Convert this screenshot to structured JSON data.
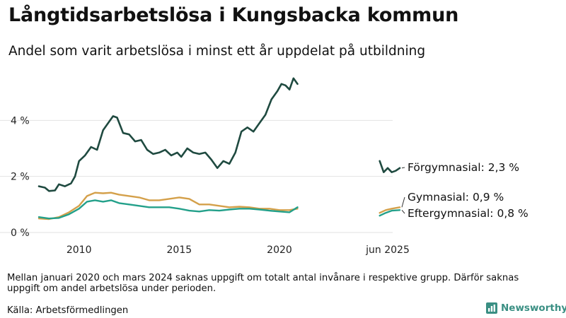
{
  "title": "Långtidsarbetslösa i Kungsbacka kommun",
  "subtitle": "Andel som varit arbetslösa i minst ett år uppdelat på utbildning",
  "note": "Mellan januari 2020 och mars 2024 saknas uppgift om totalt antal invånare i respektive grupp. Därför saknas uppgift om andel arbetslösa under perioden.",
  "source": "Källa: Arbetsförmedlingen",
  "brand": {
    "name": "Newsworthy",
    "icon": "newsworthy-logo-icon",
    "color": "#3a8f83"
  },
  "chart_data": {
    "type": "line",
    "x_unit": "year (decimal)",
    "xlim": [
      2008.0,
      2026.0
    ],
    "ylim": [
      0,
      6
    ],
    "grid": true,
    "y_ticks": [
      0,
      2,
      4
    ],
    "y_tick_labels": [
      "0 %",
      "2 %",
      "4 %"
    ],
    "x_ticks": [
      2010,
      2015,
      2020,
      2025.4
    ],
    "x_tick_labels": [
      "2010",
      "2015",
      "2020",
      "jun 2025"
    ],
    "series": [
      {
        "name": "Förgymnasial",
        "end_label": "Förgymnasial: 2,3 %",
        "color": "#1f4a40",
        "segments": [
          [
            [
              2008.0,
              1.65
            ],
            [
              2008.3,
              1.6
            ],
            [
              2008.5,
              1.48
            ],
            [
              2008.8,
              1.5
            ],
            [
              2009.0,
              1.72
            ],
            [
              2009.3,
              1.65
            ],
            [
              2009.6,
              1.75
            ],
            [
              2009.8,
              2.0
            ],
            [
              2010.0,
              2.55
            ],
            [
              2010.3,
              2.75
            ],
            [
              2010.6,
              3.05
            ],
            [
              2010.9,
              2.95
            ],
            [
              2011.2,
              3.65
            ],
            [
              2011.5,
              3.95
            ],
            [
              2011.7,
              4.15
            ],
            [
              2011.9,
              4.1
            ],
            [
              2012.2,
              3.55
            ],
            [
              2012.5,
              3.5
            ],
            [
              2012.8,
              3.25
            ],
            [
              2013.1,
              3.3
            ],
            [
              2013.4,
              2.95
            ],
            [
              2013.7,
              2.8
            ],
            [
              2014.0,
              2.85
            ],
            [
              2014.3,
              2.95
            ],
            [
              2014.6,
              2.75
            ],
            [
              2014.9,
              2.85
            ],
            [
              2015.1,
              2.7
            ],
            [
              2015.4,
              3.0
            ],
            [
              2015.7,
              2.85
            ],
            [
              2016.0,
              2.8
            ],
            [
              2016.3,
              2.85
            ],
            [
              2016.6,
              2.6
            ],
            [
              2016.9,
              2.3
            ],
            [
              2017.2,
              2.55
            ],
            [
              2017.5,
              2.45
            ],
            [
              2017.8,
              2.85
            ],
            [
              2018.1,
              3.6
            ],
            [
              2018.4,
              3.75
            ],
            [
              2018.7,
              3.6
            ],
            [
              2019.0,
              3.9
            ],
            [
              2019.3,
              4.2
            ],
            [
              2019.6,
              4.75
            ],
            [
              2019.9,
              5.05
            ],
            [
              2020.1,
              5.3
            ],
            [
              2020.3,
              5.25
            ],
            [
              2020.5,
              5.1
            ],
            [
              2020.7,
              5.5
            ],
            [
              2020.9,
              5.3
            ]
          ],
          [
            [
              2025.0,
              2.55
            ],
            [
              2025.2,
              2.15
            ],
            [
              2025.4,
              2.3
            ],
            [
              2025.6,
              2.15
            ],
            [
              2025.8,
              2.2
            ],
            [
              2026.0,
              2.3
            ]
          ]
        ]
      },
      {
        "name": "Gymnasial",
        "end_label": "Gymnasial: 0,9 %",
        "color": "#d4a04a",
        "segments": [
          [
            [
              2008.0,
              0.5
            ],
            [
              2008.5,
              0.48
            ],
            [
              2009.0,
              0.55
            ],
            [
              2009.5,
              0.72
            ],
            [
              2010.0,
              0.95
            ],
            [
              2010.4,
              1.3
            ],
            [
              2010.8,
              1.42
            ],
            [
              2011.2,
              1.4
            ],
            [
              2011.6,
              1.42
            ],
            [
              2012.0,
              1.35
            ],
            [
              2012.5,
              1.3
            ],
            [
              2013.0,
              1.25
            ],
            [
              2013.5,
              1.15
            ],
            [
              2014.0,
              1.15
            ],
            [
              2014.5,
              1.2
            ],
            [
              2015.0,
              1.25
            ],
            [
              2015.5,
              1.2
            ],
            [
              2016.0,
              1.0
            ],
            [
              2016.5,
              1.0
            ],
            [
              2017.0,
              0.95
            ],
            [
              2017.5,
              0.9
            ],
            [
              2018.0,
              0.92
            ],
            [
              2018.5,
              0.9
            ],
            [
              2019.0,
              0.85
            ],
            [
              2019.5,
              0.85
            ],
            [
              2020.0,
              0.8
            ],
            [
              2020.5,
              0.8
            ],
            [
              2020.9,
              0.85
            ]
          ],
          [
            [
              2025.0,
              0.7
            ],
            [
              2025.3,
              0.8
            ],
            [
              2025.6,
              0.85
            ],
            [
              2026.0,
              0.9
            ]
          ]
        ]
      },
      {
        "name": "Eftergymnasial",
        "end_label": "Eftergymnasial: 0,8 %",
        "color": "#23a08a",
        "segments": [
          [
            [
              2008.0,
              0.55
            ],
            [
              2008.5,
              0.5
            ],
            [
              2009.0,
              0.52
            ],
            [
              2009.5,
              0.65
            ],
            [
              2010.0,
              0.85
            ],
            [
              2010.4,
              1.1
            ],
            [
              2010.8,
              1.15
            ],
            [
              2011.2,
              1.1
            ],
            [
              2011.6,
              1.15
            ],
            [
              2012.0,
              1.05
            ],
            [
              2012.5,
              1.0
            ],
            [
              2013.0,
              0.95
            ],
            [
              2013.5,
              0.9
            ],
            [
              2014.0,
              0.9
            ],
            [
              2014.5,
              0.9
            ],
            [
              2015.0,
              0.85
            ],
            [
              2015.5,
              0.78
            ],
            [
              2016.0,
              0.75
            ],
            [
              2016.5,
              0.8
            ],
            [
              2017.0,
              0.78
            ],
            [
              2017.5,
              0.82
            ],
            [
              2018.0,
              0.85
            ],
            [
              2018.5,
              0.85
            ],
            [
              2019.0,
              0.82
            ],
            [
              2019.5,
              0.78
            ],
            [
              2020.0,
              0.75
            ],
            [
              2020.5,
              0.72
            ],
            [
              2020.9,
              0.9
            ]
          ],
          [
            [
              2025.0,
              0.6
            ],
            [
              2025.3,
              0.7
            ],
            [
              2025.6,
              0.78
            ],
            [
              2026.0,
              0.8
            ]
          ]
        ]
      }
    ]
  }
}
